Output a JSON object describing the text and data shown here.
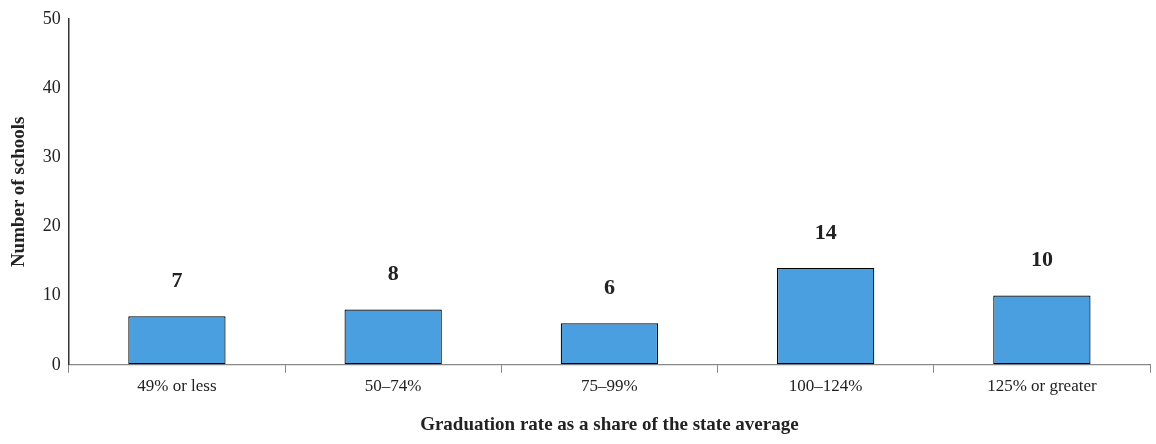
{
  "chart_data": {
    "type": "bar",
    "xlabel": "Graduation rate as a share of the state average",
    "ylabel": "Number of schools",
    "categories": [
      "49% or less",
      "50–74%",
      "75–99%",
      "100–124%",
      "125% or greater"
    ],
    "values": [
      7,
      8,
      6,
      14,
      10
    ],
    "color": "#4a9fe0",
    "ylim": [
      0,
      50
    ],
    "yticks": [
      0,
      10,
      20,
      30,
      40,
      50
    ],
    "grid": false,
    "legend": false,
    "data_labels": true
  }
}
